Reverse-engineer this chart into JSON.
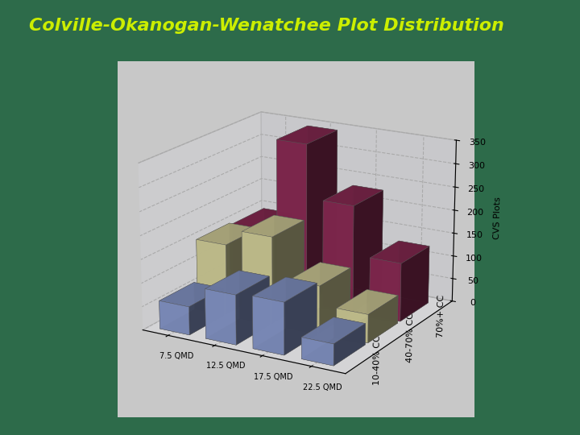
{
  "title": "Colville-Okanogan-Wenatchee Plot Distribution",
  "title_color": "#CCEE00",
  "background_color": "#2D6B4A",
  "ylabel": "CVS Plots",
  "qmd_labels": [
    "7.5 QMD",
    "12.5 QMD",
    "17.5 QMD",
    "22.5 QMD"
  ],
  "series_labels": [
    "70%+ CC",
    "40-70% CC",
    "10-40% CC"
  ],
  "series_colors_bar": [
    "#8B2B55",
    "#D4D09A",
    "#8899CC"
  ],
  "data": {
    "10-40% CC": [
      60,
      105,
      110,
      45
    ],
    "40-70% CC": [
      150,
      185,
      100,
      60
    ],
    "70%+ CC": [
      145,
      345,
      230,
      125
    ]
  },
  "ylim": [
    0,
    350
  ],
  "yticks": [
    0,
    50,
    100,
    150,
    200,
    250,
    300,
    350
  ],
  "pane_left": "#C0C0C8",
  "pane_back": "#D5D5DC",
  "pane_floor": "#B8B8C0"
}
